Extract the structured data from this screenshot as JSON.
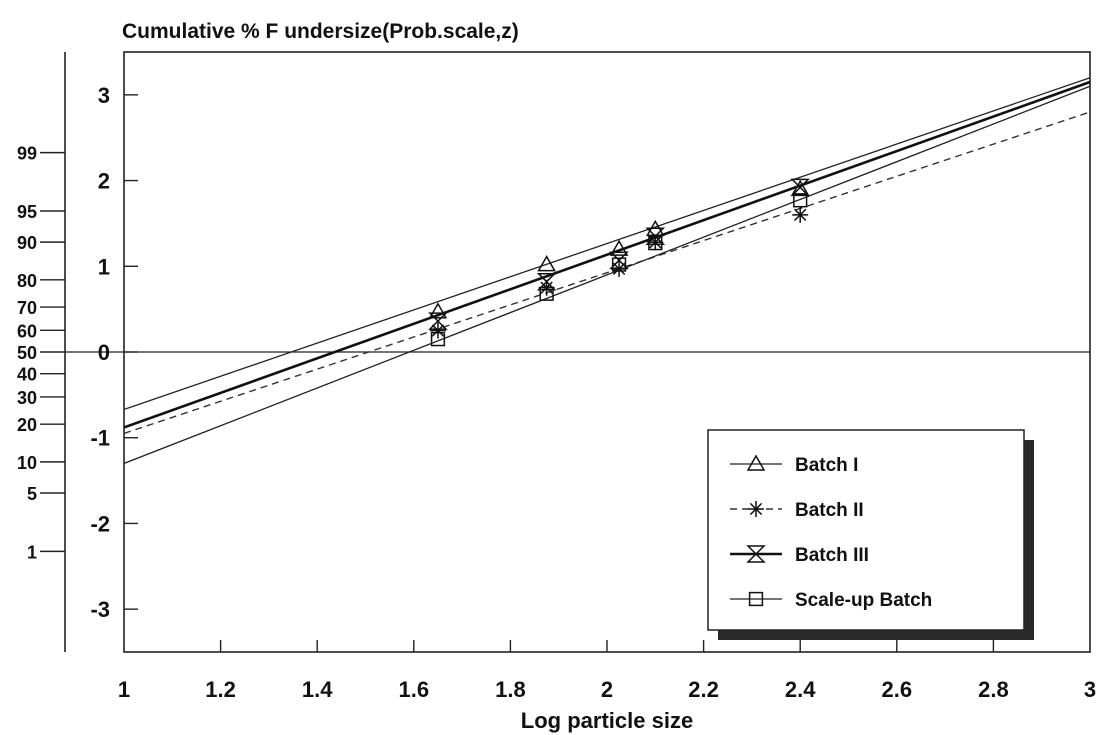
{
  "chart_data": {
    "type": "scatter",
    "title": "Cumulative % F undersize(Prob.scale,z)",
    "xlabel": "Log particle size",
    "ylabel": "",
    "xlim": [
      1,
      3
    ],
    "ylim": [
      -3.5,
      3.5
    ],
    "x_ticks": [
      "1",
      "1.2",
      "1.4",
      "1.6",
      "1.8",
      "2",
      "2.2",
      "2.4",
      "2.6",
      "2.8",
      "3"
    ],
    "y_ticks": [
      "3",
      "2",
      "1",
      "0",
      "-1",
      "-2",
      "-3"
    ],
    "secondary_axis_label_values": [
      "99",
      "95",
      "90",
      "80",
      "70",
      "60",
      "50",
      "40",
      "30",
      "20",
      "10",
      "5",
      "1"
    ],
    "secondary_axis_z": [
      2.326,
      1.645,
      1.282,
      0.842,
      0.524,
      0.253,
      0,
      -0.253,
      -0.524,
      -0.842,
      -1.282,
      -1.645,
      -2.326
    ],
    "zero_reference_line": true,
    "grid": false,
    "legend_position": "bottom-right",
    "series": [
      {
        "name": "Batch I",
        "marker": "triangle",
        "line_style": "solid",
        "x": [
          1.65,
          1.875,
          2.025,
          2.1,
          2.4
        ],
        "y": [
          0.47,
          1.02,
          1.2,
          1.43,
          1.9
        ],
        "fit": [
          [
            1,
            -0.67
          ],
          [
            3,
            3.2
          ]
        ]
      },
      {
        "name": "Batch II",
        "marker": "asterisk",
        "line_style": "dashed",
        "x": [
          1.65,
          1.875,
          2.025,
          2.1,
          2.4
        ],
        "y": [
          0.25,
          0.75,
          0.97,
          1.28,
          1.6
        ],
        "fit": [
          [
            1,
            -0.95
          ],
          [
            3,
            2.8
          ]
        ]
      },
      {
        "name": "Batch III",
        "marker": "hourglass",
        "line_style": "solid-thick",
        "x": [
          1.65,
          1.875,
          2.025,
          2.1,
          2.4
        ],
        "y": [
          0.36,
          0.82,
          1.07,
          1.35,
          1.92
        ],
        "fit": [
          [
            1,
            -0.88
          ],
          [
            3,
            3.15
          ]
        ]
      },
      {
        "name": "Scale-up Batch",
        "marker": "square",
        "line_style": "solid",
        "x": [
          1.65,
          1.875,
          2.025,
          2.1,
          2.4
        ],
        "y": [
          0.15,
          0.68,
          1.02,
          1.27,
          1.77
        ],
        "fit": [
          [
            1,
            -1.3
          ],
          [
            3,
            3.1
          ]
        ]
      }
    ]
  }
}
